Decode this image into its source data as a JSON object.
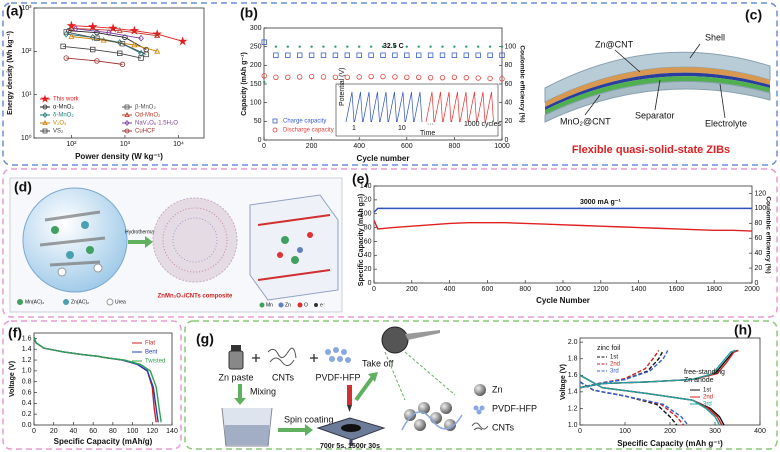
{
  "chart_data": [
    {
      "type": "line",
      "panel": "(a)",
      "x_label": "Power density (W kg⁻¹)",
      "y_label": "Energy density (Wh kg⁻¹)",
      "xlog": true,
      "ylog": true,
      "xlim": [
        20,
        30000
      ],
      "ylim": [
        1,
        1000
      ],
      "xticks": [
        {
          "value": 100,
          "label": "10²"
        },
        {
          "value": 1000,
          "label": "10³"
        },
        {
          "value": 10000,
          "label": "10⁴"
        }
      ],
      "yticks": [
        {
          "value": 1,
          "label": "10⁰"
        },
        {
          "value": 10,
          "label": "10¹"
        },
        {
          "value": 100,
          "label": "10²"
        },
        {
          "value": 1000,
          "label": "10³"
        }
      ],
      "series": [
        {
          "name": "This work",
          "color": "#e41a1c",
          "marker": "star",
          "x": [
            100,
            250,
            600,
            1500,
            4000,
            12000
          ],
          "values": [
            390,
            370,
            340,
            300,
            250,
            170
          ]
        },
        {
          "name": "α-MnO₂",
          "color": "#222222",
          "marker": "circle",
          "x": [
            90,
            300,
            1000,
            2500
          ],
          "values": [
            300,
            270,
            210,
            110
          ]
        },
        {
          "name": "δ-MnO₂",
          "color": "#1b7a7a",
          "marker": "diamond",
          "x": [
            80,
            250,
            800,
            2000
          ],
          "values": [
            250,
            210,
            160,
            90
          ]
        },
        {
          "name": "V₂O₅",
          "color": "#d08000",
          "marker": "triangle",
          "x": [
            100,
            400,
            1500,
            4000
          ],
          "values": [
            220,
            180,
            140,
            100
          ]
        },
        {
          "name": "VS₂",
          "color": "#444444",
          "marker": "square",
          "x": [
            70,
            250,
            800,
            2000
          ],
          "values": [
            130,
            110,
            90,
            70
          ]
        },
        {
          "name": "β-MnO₂",
          "color": "#555555",
          "marker": "square",
          "x": [
            80,
            300,
            900,
            2500
          ],
          "values": [
            280,
            200,
            150,
            85
          ]
        },
        {
          "name": "Od-MnO₂",
          "color": "#c0392b",
          "marker": "triangle",
          "x": [
            100,
            800,
            4000
          ],
          "values": [
            340,
            300,
            230
          ]
        },
        {
          "name": "NaV₃O₈·1.5H₂O",
          "color": "#7b3f9e",
          "marker": "diamond",
          "x": [
            120,
            500,
            2000
          ],
          "values": [
            330,
            270,
            200
          ]
        },
        {
          "name": "CuHCF",
          "color": "#a03030",
          "marker": "circle",
          "x": [
            80,
            300,
            900
          ],
          "values": [
            70,
            60,
            50
          ]
        }
      ]
    },
    {
      "type": "scatter",
      "panel": "(b)",
      "x_label": "Cycle number",
      "y_label": "Capacity (mAh g⁻¹)",
      "y2_label": "Coulombic efficiency (%)",
      "xlim": [
        0,
        1000
      ],
      "ylim": [
        0,
        300
      ],
      "y2lim": [
        0,
        120
      ],
      "xticks": [
        0,
        200,
        400,
        600,
        800,
        1000
      ],
      "yticks": [
        0,
        50,
        100,
        150,
        200,
        250,
        300
      ],
      "y2ticks": [
        0,
        20,
        40,
        60,
        80,
        100
      ],
      "x": [
        1,
        50,
        100,
        150,
        200,
        250,
        300,
        350,
        400,
        450,
        500,
        550,
        600,
        650,
        700,
        750,
        800,
        850,
        900,
        950,
        1000
      ],
      "series": [
        {
          "name": "Charge capacity",
          "color": "#3a5fcd",
          "marker": "square",
          "values": [
            262,
            227,
            227,
            227,
            227,
            227,
            227,
            227,
            227,
            227,
            227,
            227,
            227,
            227,
            227,
            227,
            227,
            227,
            227,
            227,
            227
          ]
        },
        {
          "name": "Discharge capacity",
          "color": "#e0403a",
          "marker": "circle",
          "values": [
            172,
            168,
            168,
            169,
            170,
            169,
            168,
            168,
            169,
            170,
            170,
            169,
            168,
            168,
            167,
            167,
            168,
            167,
            166,
            165,
            164
          ]
        },
        {
          "color": "#2e9e6e",
          "marker": "dot",
          "axis": "y2",
          "values": [
            62,
            100,
            100,
            100,
            100,
            100,
            100,
            100,
            100,
            100,
            100,
            100,
            100,
            100,
            100,
            100,
            100,
            100,
            100,
            100,
            100
          ]
        }
      ],
      "annotations": [
        {
          "text": "32.5 C"
        },
        {
          "text": "Potential (V)"
        },
        {
          "text": "Time"
        },
        {
          "text": "1"
        },
        {
          "text": "10"
        },
        {
          "text": "···"
        },
        {
          "text": "1000 cycles"
        }
      ]
    },
    {
      "type": "line",
      "panel": "(e)",
      "x_label": "Cycle Number",
      "y_label": "Specific Capacity (mAh g⁻¹)",
      "y2_label": "Coulombic efficiency (%)",
      "xlim": [
        0,
        2000
      ],
      "ylim": [
        0,
        140
      ],
      "y2lim": [
        0,
        130
      ],
      "xticks": [
        0,
        200,
        400,
        600,
        800,
        1000,
        1200,
        1400,
        1600,
        1800,
        2000
      ],
      "yticks": [
        0,
        20,
        40,
        60,
        80,
        100,
        120,
        140
      ],
      "y2ticks": [
        0,
        20,
        40,
        60,
        80,
        100,
        120
      ],
      "x": [
        1,
        20,
        100,
        200,
        300,
        400,
        500,
        600,
        700,
        800,
        900,
        1000,
        1100,
        1200,
        1300,
        1400,
        1500,
        1600,
        1700,
        1800,
        1900,
        2000
      ],
      "series": [
        {
          "color": "#e02020",
          "marker": "none",
          "values": [
            90,
            78,
            80,
            82,
            84,
            86,
            87,
            87,
            87,
            86,
            85,
            84,
            83,
            82,
            81,
            80,
            79,
            78,
            77,
            76,
            76,
            75
          ]
        },
        {
          "color": "#3050c0",
          "marker": "none",
          "axis": "y2",
          "values": [
            95,
            100,
            100,
            100,
            100,
            100,
            100,
            100,
            100,
            100,
            100,
            100,
            100,
            100,
            100,
            100,
            100,
            100,
            100,
            100,
            100,
            100
          ]
        }
      ],
      "annotations": [
        {
          "text": "3000 mA g⁻¹"
        }
      ]
    },
    {
      "type": "line",
      "panel": "(f)",
      "x_label": "Specific Capacity (mAh/g)",
      "y_label": "Voltage (V)",
      "xlim": [
        0,
        140
      ],
      "ylim": [
        0,
        1.7
      ],
      "xticks": [
        0,
        20,
        40,
        60,
        80,
        100,
        120,
        140
      ],
      "yticks": [
        {
          "value": 0,
          "label": "0.0"
        },
        0.2,
        0.4,
        0.6,
        0.8,
        {
          "value": 1,
          "label": "1.0"
        },
        1.2,
        1.4,
        1.6
      ],
      "series": [
        {
          "name": "Flat",
          "color": "#d02020",
          "marker": "none",
          "x": [
            0,
            2,
            10,
            30,
            50,
            65,
            70,
            90,
            105,
            115,
            120,
            122,
            124
          ],
          "values": [
            1.62,
            1.52,
            1.42,
            1.35,
            1.3,
            1.27,
            1.25,
            1.2,
            1.12,
            1.0,
            0.7,
            0.3,
            0.05
          ]
        },
        {
          "name": "Bent",
          "color": "#2040c0",
          "marker": "none",
          "x": [
            0,
            2,
            10,
            30,
            50,
            65,
            70,
            90,
            105,
            115,
            121,
            124,
            126
          ],
          "values": [
            1.62,
            1.52,
            1.42,
            1.35,
            1.3,
            1.27,
            1.25,
            1.2,
            1.12,
            1.0,
            0.7,
            0.3,
            0.05
          ]
        },
        {
          "name": "Twisted",
          "color": "#30a050",
          "marker": "none",
          "x": [
            0,
            2,
            10,
            30,
            50,
            65,
            70,
            92,
            108,
            118,
            124,
            127,
            129
          ],
          "values": [
            1.62,
            1.52,
            1.42,
            1.35,
            1.3,
            1.27,
            1.25,
            1.2,
            1.12,
            1.0,
            0.7,
            0.3,
            0.05
          ]
        }
      ]
    },
    {
      "type": "line",
      "panel": "(h)",
      "x_label": "Specific Capacity (mAh g⁻¹)",
      "y_label": "Voltage (V)",
      "xlim": [
        0,
        400
      ],
      "ylim": [
        1,
        2.05
      ],
      "xticks": [
        0,
        100,
        200,
        300,
        400
      ],
      "yticks": [
        {
          "value": 1,
          "label": "1.0"
        },
        1.2,
        1.4,
        1.6,
        1.8,
        {
          "value": 2,
          "label": "2.0"
        }
      ],
      "series": [
        {
          "name": "1st",
          "color": "#111111",
          "dash": true,
          "marker": "none",
          "x": [
            0,
            40,
            100,
            150,
            175,
            185,
            null,
            0,
            30,
            100,
            170,
            200,
            215
          ],
          "values": [
            1.45,
            1.5,
            1.55,
            1.65,
            1.8,
            1.9,
            null,
            1.52,
            1.42,
            1.35,
            1.25,
            1.1,
            1.0
          ]
        },
        {
          "name": "2nd",
          "color": "#d02020",
          "dash": true,
          "marker": "none",
          "x": [
            0,
            40,
            100,
            145,
            165,
            175,
            null,
            0,
            30,
            100,
            180,
            215,
            230
          ],
          "values": [
            1.45,
            1.5,
            1.56,
            1.68,
            1.82,
            1.9,
            null,
            1.52,
            1.42,
            1.35,
            1.25,
            1.1,
            1.0
          ]
        },
        {
          "name": "3rd",
          "color": "#3060d0",
          "dash": true,
          "marker": "none",
          "x": [
            0,
            40,
            100,
            155,
            185,
            195,
            null,
            0,
            30,
            100,
            185,
            225,
            240
          ],
          "values": [
            1.45,
            1.5,
            1.55,
            1.65,
            1.8,
            1.9,
            null,
            1.52,
            1.42,
            1.35,
            1.25,
            1.1,
            1.0
          ]
        },
        {
          "name": "1st",
          "color": "#111111",
          "marker": "none",
          "x": [
            0,
            50,
            150,
            250,
            300,
            320,
            340,
            350,
            null,
            0,
            50,
            150,
            250,
            290,
            310,
            320
          ],
          "values": [
            1.45,
            1.5,
            1.52,
            1.55,
            1.62,
            1.75,
            1.88,
            1.9,
            null,
            1.6,
            1.45,
            1.38,
            1.3,
            1.2,
            1.1,
            1.0
          ]
        },
        {
          "name": "2nd",
          "color": "#d02020",
          "marker": "none",
          "x": [
            0,
            50,
            150,
            250,
            305,
            325,
            342,
            352,
            null,
            0,
            50,
            150,
            250,
            285,
            305,
            315
          ],
          "values": [
            1.45,
            1.5,
            1.52,
            1.55,
            1.62,
            1.75,
            1.88,
            1.9,
            null,
            1.6,
            1.45,
            1.38,
            1.3,
            1.2,
            1.1,
            1.0
          ]
        },
        {
          "name": "3rd",
          "color": "#20a0a0",
          "marker": "none",
          "x": [
            0,
            50,
            150,
            250,
            295,
            315,
            335,
            345,
            null,
            0,
            50,
            150,
            250,
            280,
            300,
            310
          ],
          "values": [
            1.45,
            1.5,
            1.52,
            1.55,
            1.62,
            1.75,
            1.88,
            1.9,
            null,
            1.6,
            1.45,
            1.38,
            1.3,
            1.2,
            1.1,
            1.0
          ]
        }
      ],
      "annotations": [
        {
          "text": "zinc foil"
        },
        {
          "text": "free-standing"
        },
        {
          "text": "Zn anode"
        }
      ]
    }
  ],
  "diagrams": {
    "c": {
      "panel": "(c)",
      "shell": "Shell",
      "zn_cnt": "Zn@CNT",
      "mno2_cnt": "MnO₂@CNT",
      "separator": "Separator",
      "electrolyte": "Electrolyte",
      "caption": "Flexible quasi-solid-state ZIBs"
    },
    "d": {
      "panel": "(d)",
      "step": "Hydrothermal",
      "precursors": [
        "Mn(AC)₂",
        "Zn(AC)₂",
        "Urea"
      ],
      "product": "ZnMn₂O₄/CNTs composite",
      "atoms": [
        "Mn",
        "Zn",
        "O",
        "e⁻"
      ]
    },
    "g": {
      "panel": "(g)",
      "inputs": [
        "Zn paste",
        "CNTs",
        "PVDF-HFP"
      ],
      "steps": [
        "Mixing",
        "Spin coating",
        "Take off"
      ],
      "speed": "700r 5s, 1500r 30s",
      "legend": [
        "Zn",
        "PVDF-HFP",
        "CNTs"
      ]
    }
  }
}
